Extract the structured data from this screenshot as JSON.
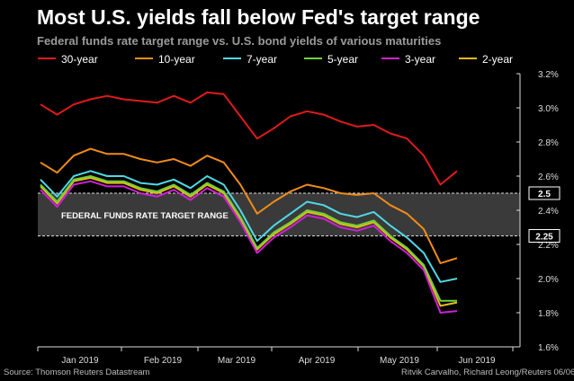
{
  "header": {
    "title": "Most U.S. yields fall below Fed's target range",
    "subtitle": "Federal funds rate target range vs. U.S. bond yields of various maturities"
  },
  "footer": {
    "source": "Source: Thomson Reuters Datastream",
    "credit": "Ritvik Carvalho, Richard Leong/Reuters 06/06/2019"
  },
  "chart_data": {
    "type": "line",
    "title": "Most U.S. yields fall below Fed's target range",
    "subtitle": "Federal funds rate target range vs. U.S. bond yields of various maturities",
    "xlabel": "",
    "ylabel": "",
    "x_ticks": [
      "Jan 2019",
      "Feb 2019",
      "Mar 2019",
      "Apr 2019",
      "May 2019",
      "Jun 2019"
    ],
    "ylim": [
      1.6,
      3.2
    ],
    "y_ticks": [
      "1.6%",
      "1.8%",
      "2.0%",
      "2.2%",
      "2.4%",
      "2.6%",
      "2.8%",
      "3.0%",
      "3.2%"
    ],
    "y_axis_side": "right",
    "grid": false,
    "legend_position": "top",
    "x": [
      "Dec 17",
      "Dec 24",
      "Dec 31",
      "Jan 7",
      "Jan 14",
      "Jan 21",
      "Jan 28",
      "Feb 4",
      "Feb 11",
      "Feb 18",
      "Feb 25",
      "Mar 4",
      "Mar 11",
      "Mar 18",
      "Mar 25",
      "Apr 1",
      "Apr 8",
      "Apr 15",
      "Apr 22",
      "Apr 29",
      "May 6",
      "May 13",
      "May 20",
      "May 27",
      "Jun 3",
      "Jun 5"
    ],
    "target_range": {
      "low": 2.25,
      "high": 2.5,
      "label": "FEDERAL FUNDS RATE TARGET RANGE",
      "low_label": "2.25",
      "high_label": "2.5"
    },
    "series": [
      {
        "name": "30-year",
        "color": "#e01b1b",
        "values": [
          3.02,
          2.96,
          3.02,
          3.05,
          3.07,
          3.05,
          3.04,
          3.03,
          3.07,
          3.03,
          3.09,
          3.08,
          2.95,
          2.82,
          2.88,
          2.95,
          2.98,
          2.96,
          2.92,
          2.89,
          2.9,
          2.85,
          2.82,
          2.72,
          2.55,
          2.63
        ]
      },
      {
        "name": "10-year",
        "color": "#f08c1a",
        "values": [
          2.68,
          2.62,
          2.72,
          2.76,
          2.73,
          2.73,
          2.7,
          2.68,
          2.7,
          2.66,
          2.72,
          2.68,
          2.55,
          2.38,
          2.45,
          2.51,
          2.55,
          2.53,
          2.5,
          2.49,
          2.5,
          2.43,
          2.38,
          2.29,
          2.09,
          2.12
        ]
      },
      {
        "name": "7-year",
        "color": "#4fd9e6",
        "values": [
          2.58,
          2.48,
          2.6,
          2.63,
          2.6,
          2.6,
          2.56,
          2.55,
          2.58,
          2.53,
          2.6,
          2.55,
          2.4,
          2.22,
          2.31,
          2.38,
          2.45,
          2.43,
          2.38,
          2.36,
          2.39,
          2.31,
          2.24,
          2.15,
          1.98,
          2.0
        ]
      },
      {
        "name": "5-year",
        "color": "#6fd13b",
        "values": [
          2.55,
          2.45,
          2.58,
          2.6,
          2.57,
          2.57,
          2.53,
          2.51,
          2.55,
          2.49,
          2.56,
          2.51,
          2.36,
          2.18,
          2.27,
          2.33,
          2.4,
          2.38,
          2.33,
          2.31,
          2.34,
          2.25,
          2.18,
          2.08,
          1.87,
          1.87
        ]
      },
      {
        "name": "3-year",
        "color": "#d21fd6",
        "values": [
          2.52,
          2.42,
          2.55,
          2.57,
          2.54,
          2.54,
          2.5,
          2.48,
          2.52,
          2.46,
          2.53,
          2.48,
          2.33,
          2.15,
          2.24,
          2.3,
          2.37,
          2.35,
          2.3,
          2.28,
          2.31,
          2.22,
          2.15,
          2.05,
          1.8,
          1.81
        ]
      },
      {
        "name": "2-year",
        "color": "#e3bb16",
        "values": [
          2.54,
          2.44,
          2.57,
          2.59,
          2.56,
          2.56,
          2.52,
          2.5,
          2.54,
          2.48,
          2.55,
          2.5,
          2.35,
          2.17,
          2.26,
          2.32,
          2.39,
          2.37,
          2.32,
          2.3,
          2.33,
          2.24,
          2.17,
          2.07,
          1.84,
          1.86
        ]
      }
    ]
  }
}
